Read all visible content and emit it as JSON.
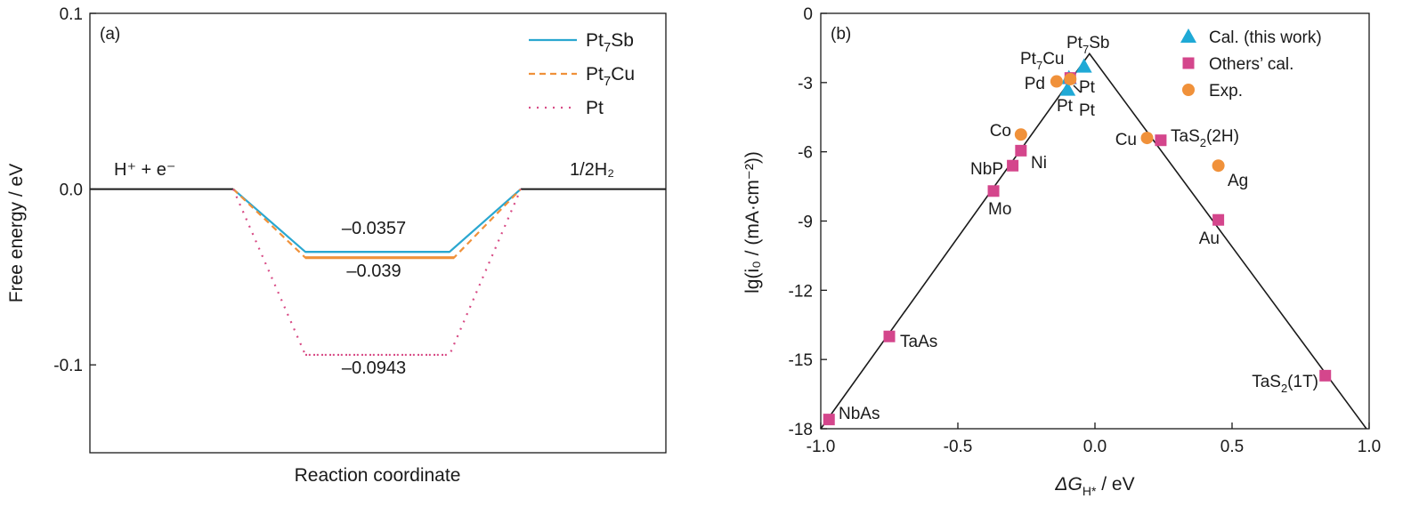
{
  "chart_data": [
    {
      "type": "line",
      "panel_label": "(a)",
      "xlabel": "Reaction coordinate",
      "ylabel": "Free energy / eV",
      "ylim": [
        -0.15,
        0.1
      ],
      "yticks": [
        {
          "value": 0.1,
          "label": "0.1"
        },
        {
          "value": 0.0,
          "label": "0.0"
        },
        {
          "value": -0.1,
          "label": "-0.1"
        }
      ],
      "states": {
        "initial": "H⁺ + e⁻",
        "final": "1/2H₂"
      },
      "legend": {
        "position": "top-right"
      },
      "series": [
        {
          "name": "Pt7Sb",
          "legend_main": "Pt",
          "legend_sub": "7",
          "legend_tail": "Sb",
          "style": "solid",
          "color": "#2aa7d0",
          "values": [
            0,
            -0.0357,
            0
          ],
          "label": "–0.0357"
        },
        {
          "name": "Pt7Cu",
          "legend_main": "Pt",
          "legend_sub": "7",
          "legend_tail": "Cu",
          "style": "dashed",
          "color": "#f0913a",
          "values": [
            0,
            -0.039,
            0
          ],
          "label": "–0.039"
        },
        {
          "name": "Pt",
          "legend_main": "Pt",
          "legend_sub": "",
          "legend_tail": "",
          "style": "dotted",
          "color": "#d84c86",
          "values": [
            0,
            -0.0943,
            0
          ],
          "label": "–0.0943"
        }
      ]
    },
    {
      "type": "scatter",
      "panel_label": "(b)",
      "xlabel": "ΔG",
      "xlabel_sub": "H*",
      "xlabel_tail": " / eV",
      "ylabel": "lg(i₀ / (mA·cm⁻²))",
      "xlim": [
        -1.0,
        1.0
      ],
      "ylim": [
        -18,
        0
      ],
      "xticks": [
        {
          "value": -1.0,
          "label": "-1.0"
        },
        {
          "value": -0.5,
          "label": "-0.5"
        },
        {
          "value": 0.0,
          "label": "0.0"
        },
        {
          "value": 0.5,
          "label": "0.5"
        },
        {
          "value": 1.0,
          "label": "1.0"
        }
      ],
      "yticks": [
        {
          "value": 0,
          "label": "0"
        },
        {
          "value": -3,
          "label": "-3"
        },
        {
          "value": -6,
          "label": "-6"
        },
        {
          "value": -9,
          "label": "-9"
        },
        {
          "value": -12,
          "label": "-12"
        },
        {
          "value": -15,
          "label": "-15"
        },
        {
          "value": -18,
          "label": "-18"
        }
      ],
      "volcano": [
        [
          -1.0,
          -18.4
        ],
        [
          -0.02,
          -1.75
        ],
        [
          0.99,
          -18.6
        ]
      ],
      "legend": {
        "position": "top-right",
        "entries": [
          {
            "name": "Cal. (this work)",
            "marker": "triangle",
            "color": "#1fa9d6"
          },
          {
            "name": "Others’ cal.",
            "marker": "square",
            "color": "#d4468c"
          },
          {
            "name": "Exp.",
            "marker": "circle",
            "color": "#f0913a"
          }
        ]
      },
      "points": [
        {
          "label": "Pt7Sb",
          "label_main": "Pt",
          "label_sub": "7",
          "label_tail": "Sb",
          "x": -0.04,
          "y": -2.3,
          "marker": "triangle",
          "color": "#1fa9d6"
        },
        {
          "label": "Pt7Cu",
          "label_main": "Pt",
          "label_sub": "7",
          "label_tail": "Cu",
          "x": -0.095,
          "y": -2.8,
          "marker": "triangle",
          "color": "#1fa9d6"
        },
        {
          "label": "Pt",
          "x": -0.1,
          "y": -3.3,
          "marker": "triangle",
          "color": "#1fa9d6"
        },
        {
          "label": "Pt",
          "x": -0.09,
          "y": -2.8,
          "marker": "square",
          "color": "#d4468c"
        },
        {
          "label": "Pt",
          "x": -0.09,
          "y": -2.85,
          "marker": "circle",
          "color": "#f0913a"
        },
        {
          "label": "Pd",
          "x": -0.14,
          "y": -2.95,
          "marker": "circle",
          "color": "#f0913a"
        },
        {
          "label": "Co",
          "x": -0.27,
          "y": -5.25,
          "marker": "circle",
          "color": "#f0913a"
        },
        {
          "label": "Ni",
          "x": -0.27,
          "y": -5.95,
          "marker": "square",
          "color": "#d4468c"
        },
        {
          "label": "NbP",
          "x": -0.3,
          "y": -6.6,
          "marker": "square",
          "color": "#d4468c"
        },
        {
          "label": "Mo",
          "x": -0.37,
          "y": -7.7,
          "marker": "square",
          "color": "#d4468c"
        },
        {
          "label": "TaAs",
          "x": -0.75,
          "y": -14.0,
          "marker": "square",
          "color": "#d4468c"
        },
        {
          "label": "NbAs",
          "x": -0.97,
          "y": -17.6,
          "marker": "square",
          "color": "#d4468c"
        },
        {
          "label": "Cu",
          "x": 0.19,
          "y": -5.4,
          "marker": "circle",
          "color": "#f0913a"
        },
        {
          "label": "TaS2(2H)",
          "label_main": "TaS",
          "label_sub": "2",
          "label_tail": "(2H)",
          "x": 0.24,
          "y": -5.5,
          "marker": "square",
          "color": "#d4468c"
        },
        {
          "label": "Ag",
          "x": 0.45,
          "y": -6.6,
          "marker": "circle",
          "color": "#f0913a"
        },
        {
          "label": "Au",
          "x": 0.45,
          "y": -8.95,
          "marker": "square",
          "color": "#d4468c"
        },
        {
          "label": "TaS2(1T)",
          "label_main": "TaS",
          "label_sub": "2",
          "label_tail": "(1T)",
          "x": 0.84,
          "y": -15.7,
          "marker": "square",
          "color": "#d4468c"
        }
      ]
    }
  ]
}
